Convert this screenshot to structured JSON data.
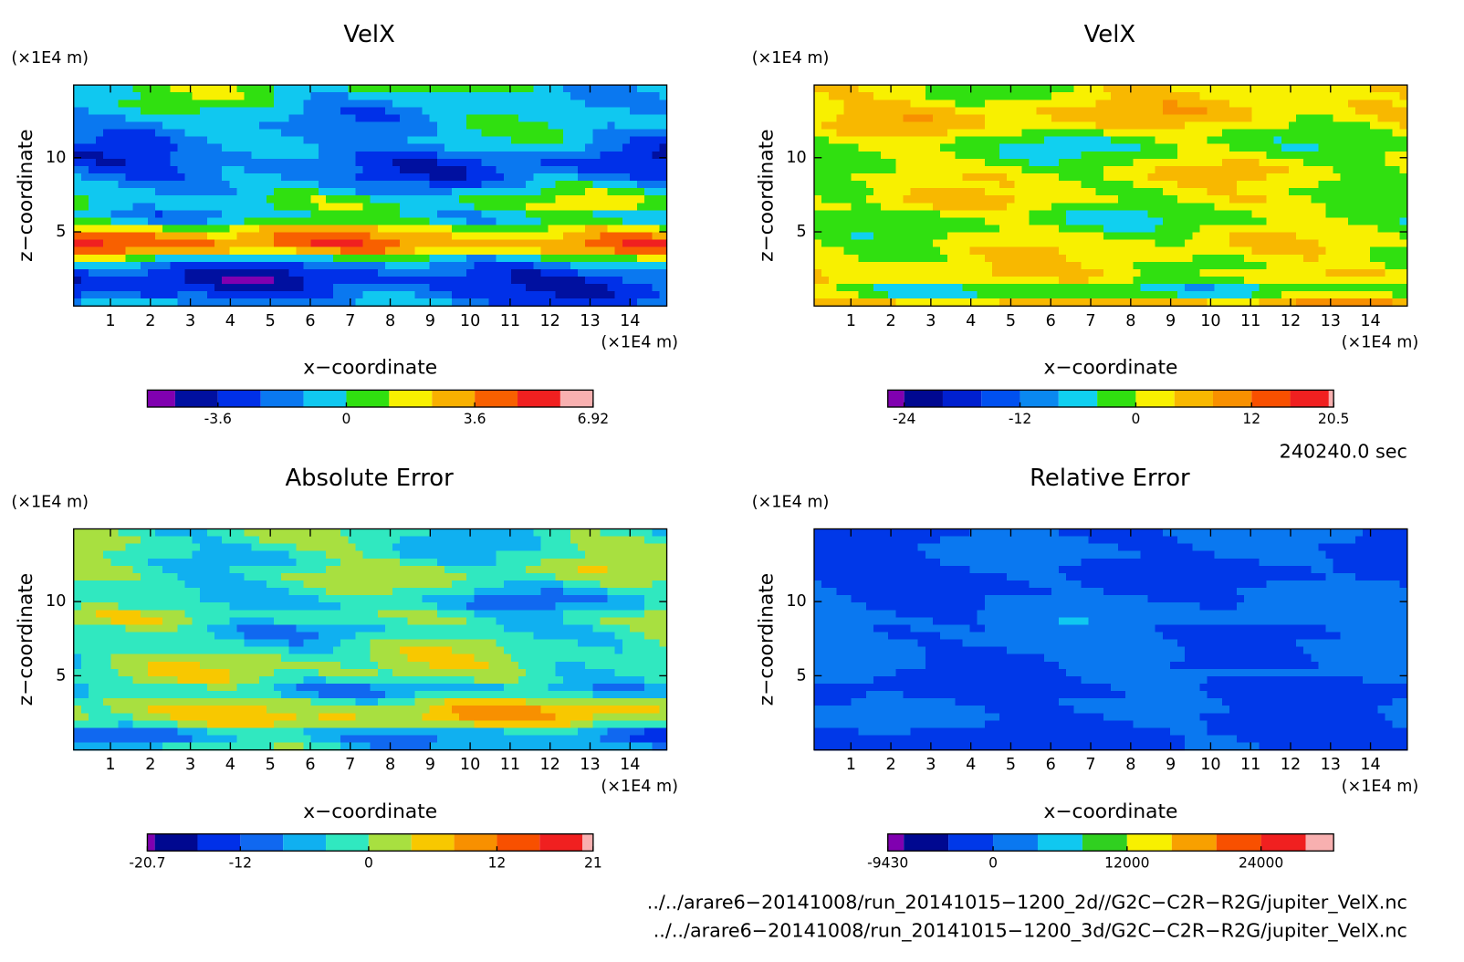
{
  "chart_data": [
    {
      "type": "contour",
      "title": "VelX",
      "xlabel": "x−coordinate",
      "ylabel": "z−coordinate",
      "x_unit": "(×1E4 m)",
      "y_unit": "(×1E4 m)",
      "xlim": [
        0.08,
        14.92
      ],
      "xticks": [
        1,
        2,
        3,
        4,
        5,
        6,
        7,
        8,
        9,
        10,
        11,
        12,
        13,
        14
      ],
      "ylim": [
        0,
        14.9
      ],
      "yticks": [
        5,
        10
      ],
      "colorbar": {
        "levels": [
          -5.58,
          -4.8,
          -3.6,
          -2.4,
          -1.2,
          0,
          1.2,
          2.4,
          3.6,
          4.8,
          6.0,
          6.92
        ],
        "colors": [
          "#8000b0",
          "#0010a0",
          "#0030e8",
          "#0a78f0",
          "#10c8f0",
          "#30e010",
          "#f8f000",
          "#f8b000",
          "#f86000",
          "#f02020",
          "#f8b0b0"
        ],
        "ticks": [
          -3.6,
          0,
          3.6,
          6.92
        ]
      }
    },
    {
      "type": "contour",
      "title": "VelX",
      "xlabel": "x−coordinate",
      "ylabel": "z−coordinate",
      "x_unit": "(×1E4 m)",
      "y_unit": "(×1E4 m)",
      "xlim": [
        0.08,
        14.92
      ],
      "xticks": [
        1,
        2,
        3,
        4,
        5,
        6,
        7,
        8,
        9,
        10,
        11,
        12,
        13,
        14
      ],
      "ylim": [
        0,
        14.9
      ],
      "yticks": [
        5,
        10
      ],
      "colorbar": {
        "levels": [
          -25.7,
          -24,
          -20,
          -16,
          -12,
          -8,
          -4,
          0,
          4,
          8,
          12,
          16,
          20,
          20.5
        ],
        "colors": [
          "#8000b0",
          "#000890",
          "#0020d0",
          "#0050f0",
          "#0a88f0",
          "#10d0f0",
          "#30e010",
          "#f8f000",
          "#f8b800",
          "#f89000",
          "#f85000",
          "#f02020",
          "#f8b0b0"
        ],
        "ticks": [
          -24,
          -12,
          0,
          12,
          20.5
        ]
      }
    },
    {
      "type": "contour",
      "title": "Absolute Error",
      "xlabel": "x−coordinate",
      "ylabel": "z−coordinate",
      "x_unit": "(×1E4 m)",
      "y_unit": "(×1E4 m)",
      "xlim": [
        0.08,
        14.92
      ],
      "xticks": [
        1,
        2,
        3,
        4,
        5,
        6,
        7,
        8,
        9,
        10,
        11,
        12,
        13,
        14
      ],
      "ylim": [
        0,
        14.9
      ],
      "yticks": [
        5,
        10
      ],
      "colorbar": {
        "levels": [
          -20.7,
          -20,
          -16,
          -12,
          -8,
          -4,
          0,
          4,
          8,
          12,
          16,
          20,
          21
        ],
        "colors": [
          "#8000b0",
          "#000890",
          "#0030e8",
          "#1068f0",
          "#10b0f0",
          "#30e8c0",
          "#a8e040",
          "#f8c800",
          "#f89000",
          "#f85000",
          "#f02020",
          "#f8b0b0"
        ],
        "ticks": [
          -20.7,
          -12,
          0,
          12,
          21
        ]
      }
    },
    {
      "type": "contour",
      "title": "Relative Error",
      "xlabel": "x−coordinate",
      "ylabel": "z−coordinate",
      "x_unit": "(×1E4 m)",
      "y_unit": "(×1E4 m)",
      "xlim": [
        0.08,
        14.92
      ],
      "xticks": [
        1,
        2,
        3,
        4,
        5,
        6,
        7,
        8,
        9,
        10,
        11,
        12,
        13,
        14
      ],
      "ylim": [
        0,
        14.9
      ],
      "yticks": [
        5,
        10
      ],
      "colorbar": {
        "levels": [
          -9430,
          -8000,
          -4000,
          0,
          4000,
          8000,
          12000,
          16000,
          20000,
          24000,
          28000,
          30500
        ],
        "colors": [
          "#8000b0",
          "#000890",
          "#0038e8",
          "#0a78f0",
          "#10c8f0",
          "#30d020",
          "#f8f000",
          "#f8a000",
          "#f85000",
          "#f02020",
          "#f8b0b0"
        ],
        "ticks": [
          -9430,
          0,
          12000,
          24000
        ]
      }
    }
  ],
  "time_label": "240240.0 sec",
  "files": [
    "../../arare6−20141008/run_20141015−1200_2d//G2C−C2R−R2G/jupiter_VelX.nc",
    "../../arare6−20141008/run_20141015−1200_3d/G2C−C2R−R2G/jupiter_VelX.nc"
  ]
}
